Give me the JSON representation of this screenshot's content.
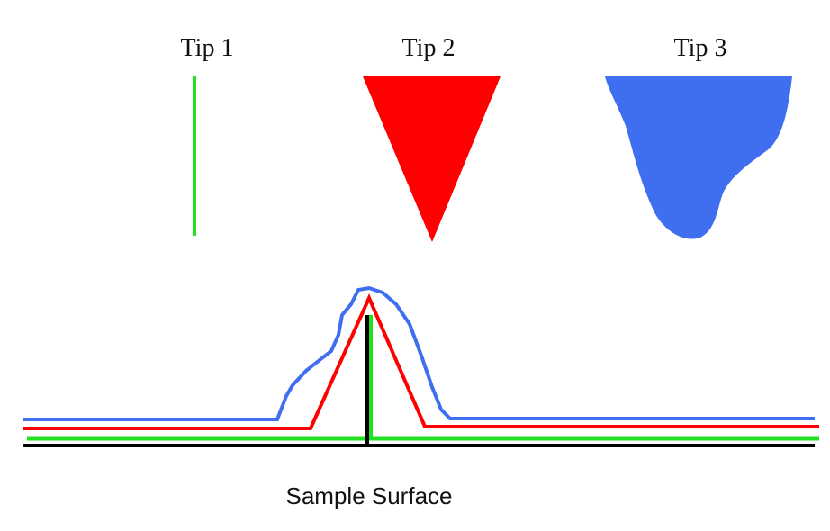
{
  "tips": [
    {
      "label": "Tip 1"
    },
    {
      "label": "Tip 2"
    },
    {
      "label": "Tip 3"
    }
  ],
  "surface": {
    "label": "Sample Surface"
  }
}
